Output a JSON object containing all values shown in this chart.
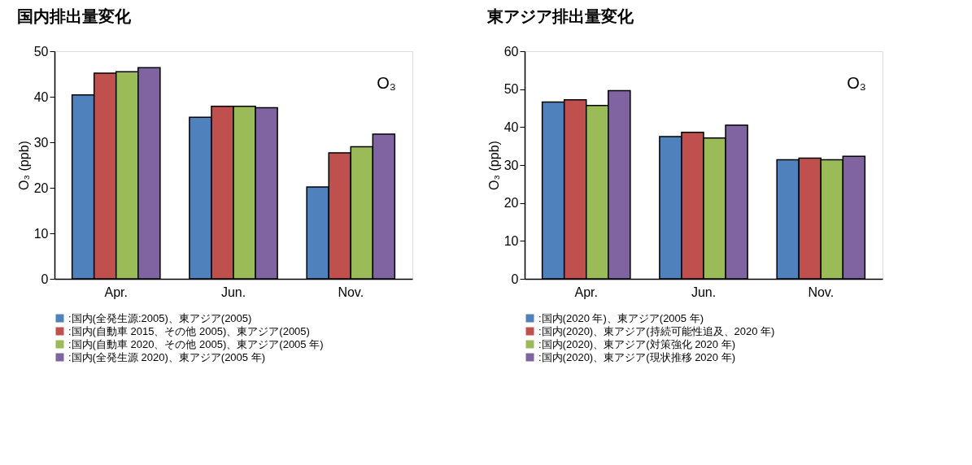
{
  "chart_data": [
    {
      "type": "bar",
      "title": "国内排出量変化",
      "ylabel": "O₃ (ppb)",
      "annotations": [
        "O₃"
      ],
      "categories": [
        "Apr.",
        "Jun.",
        "Nov."
      ],
      "ylim": [
        0,
        50
      ],
      "yticks": [
        0,
        10,
        20,
        30,
        40,
        50
      ],
      "grid": false,
      "legend": "bottom",
      "series": [
        {
          "name": ":国内(全発生源:2005)、東アジア(2005)",
          "color": "#4f81bd",
          "values": [
            40.4,
            35.5,
            20.2
          ]
        },
        {
          "name": ":国内(自動車 2015、その他 2005)、東アジア(2005)",
          "color": "#c0504d",
          "values": [
            45.2,
            37.9,
            27.7
          ]
        },
        {
          "name": ":国内(自動車 2020、その他 2005)、東アジア(2005 年)",
          "color": "#9bbb59",
          "values": [
            45.5,
            37.9,
            29.0
          ]
        },
        {
          "name": ":国内(全発生源 2020)、東アジア(2005 年)",
          "color": "#8064a2",
          "values": [
            46.4,
            37.6,
            31.8
          ]
        }
      ]
    },
    {
      "type": "bar",
      "title": "東アジア排出量変化",
      "ylabel": "O₃ (ppb)",
      "annotations": [
        "O₃"
      ],
      "categories": [
        "Apr.",
        "Jun.",
        "Nov."
      ],
      "ylim": [
        0,
        60
      ],
      "yticks": [
        0,
        10,
        20,
        30,
        40,
        50,
        60
      ],
      "grid": false,
      "legend": "bottom",
      "series": [
        {
          "name": ":国内(2020 年)、東アジア(2005 年)",
          "color": "#4f81bd",
          "values": [
            46.6,
            37.5,
            31.4
          ]
        },
        {
          "name": ":国内(2020)、東アジア(持続可能性追及、2020 年)",
          "color": "#c0504d",
          "values": [
            47.2,
            38.6,
            31.8
          ]
        },
        {
          "name": ":国内(2020)、東アジア(対策強化 2020 年)",
          "color": "#9bbb59",
          "values": [
            45.7,
            37.1,
            31.4
          ]
        },
        {
          "name": ":国内(2020)、東アジア(現状推移 2020 年)",
          "color": "#8064a2",
          "values": [
            49.6,
            40.5,
            32.3
          ]
        }
      ]
    }
  ]
}
